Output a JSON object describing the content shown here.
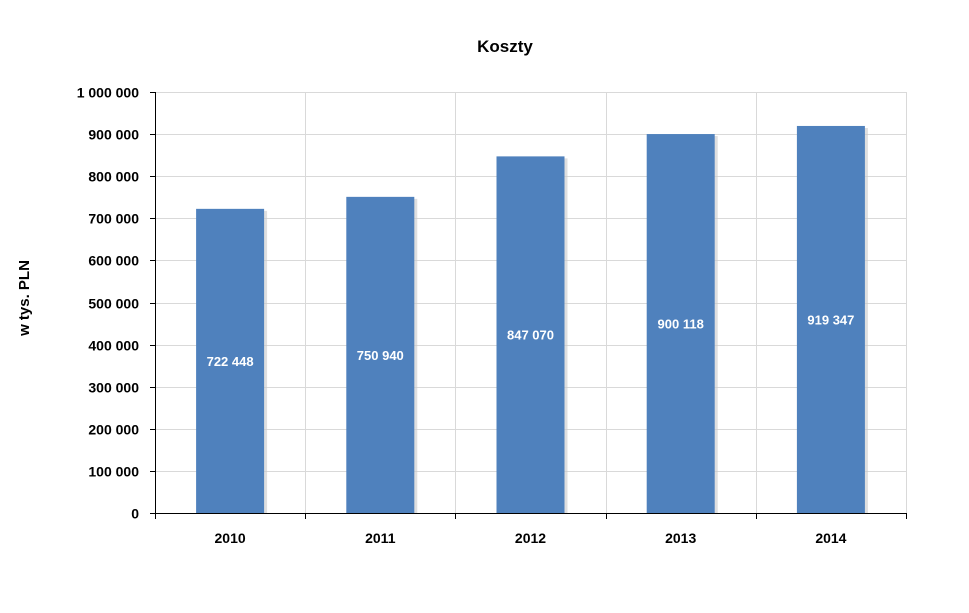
{
  "chart_data": {
    "type": "bar",
    "title": "Koszty",
    "xlabel": "",
    "ylabel": "w tys. PLN",
    "categories": [
      "2010",
      "2011",
      "2012",
      "2013",
      "2014"
    ],
    "values": [
      722448,
      750940,
      847070,
      900118,
      919347
    ],
    "value_labels": [
      "722 448",
      "750 940",
      "847 070",
      "900 118",
      "919 347"
    ],
    "ylim": [
      0,
      1000000
    ],
    "y_ticks": [
      0,
      100000,
      200000,
      300000,
      400000,
      500000,
      600000,
      700000,
      800000,
      900000,
      1000000
    ],
    "y_tick_labels": [
      "0",
      "100 000",
      "200 000",
      "300 000",
      "400 000",
      "500 000",
      "600 000",
      "700 000",
      "800 000",
      "900 000",
      "1 000 000"
    ],
    "grid": true,
    "legend": "none",
    "colors": {
      "bar": "#4F81BD",
      "grid": "#D9D9D9",
      "axis": "#000000",
      "data_label": "#FFFFFF"
    }
  }
}
